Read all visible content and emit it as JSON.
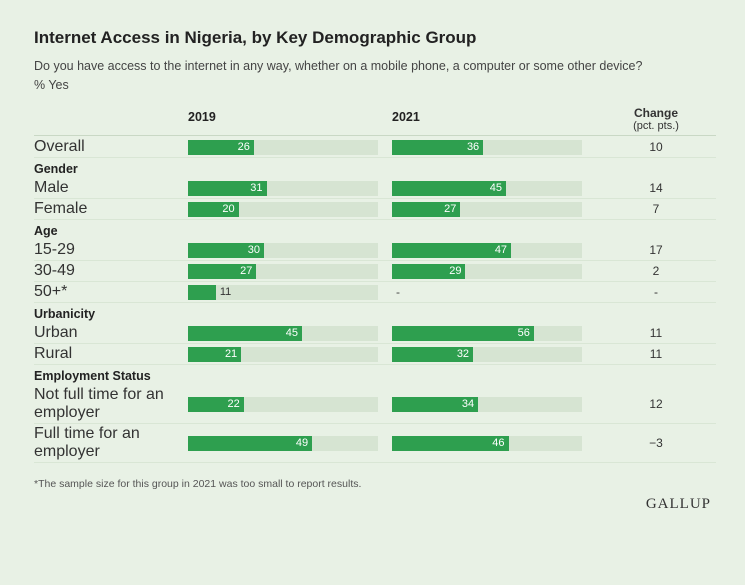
{
  "title": "Internet Access in Nigeria, by Key Demographic Group",
  "subtitle": "Do you have access to the internet in any way, whether on a mobile phone, a computer or some other device?",
  "pctline": "% Yes",
  "headers": {
    "col1": "2019",
    "col2": "2021",
    "change": "Change",
    "change_sub": "(pct. pts.)"
  },
  "footnote": "*The sample size for this group in 2021 was too small to report results.",
  "logo": "GALLUP",
  "chart": {
    "bar_max": 75,
    "bar_color": "#2e9f4f",
    "bar_track_color": "#d6e4d2",
    "background": "#e8f1e5",
    "outside_threshold": 15,
    "sections": [
      {
        "header": null,
        "rows": [
          {
            "label": "Overall",
            "v2019": 26,
            "v2021": 36,
            "change": "10"
          }
        ]
      },
      {
        "header": "Gender",
        "rows": [
          {
            "label": "Male",
            "v2019": 31,
            "v2021": 45,
            "change": "14"
          },
          {
            "label": "Female",
            "v2019": 20,
            "v2021": 27,
            "change": "7"
          }
        ]
      },
      {
        "header": "Age",
        "rows": [
          {
            "label": "15-29",
            "v2019": 30,
            "v2021": 47,
            "change": "17"
          },
          {
            "label": "30-49",
            "v2019": 27,
            "v2021": 29,
            "change": "2"
          },
          {
            "label": "50+*",
            "v2019": 11,
            "v2021": null,
            "change": "-"
          }
        ]
      },
      {
        "header": "Urbanicity",
        "rows": [
          {
            "label": "Urban",
            "v2019": 45,
            "v2021": 56,
            "change": "11"
          },
          {
            "label": "Rural",
            "v2019": 21,
            "v2021": 32,
            "change": "11"
          }
        ]
      },
      {
        "header": "Employment Status",
        "rows": [
          {
            "label": "Not full time for an employer",
            "v2019": 22,
            "v2021": 34,
            "change": "12"
          },
          {
            "label": "Full time for an employer",
            "v2019": 49,
            "v2021": 46,
            "change": "−3"
          }
        ]
      }
    ]
  }
}
